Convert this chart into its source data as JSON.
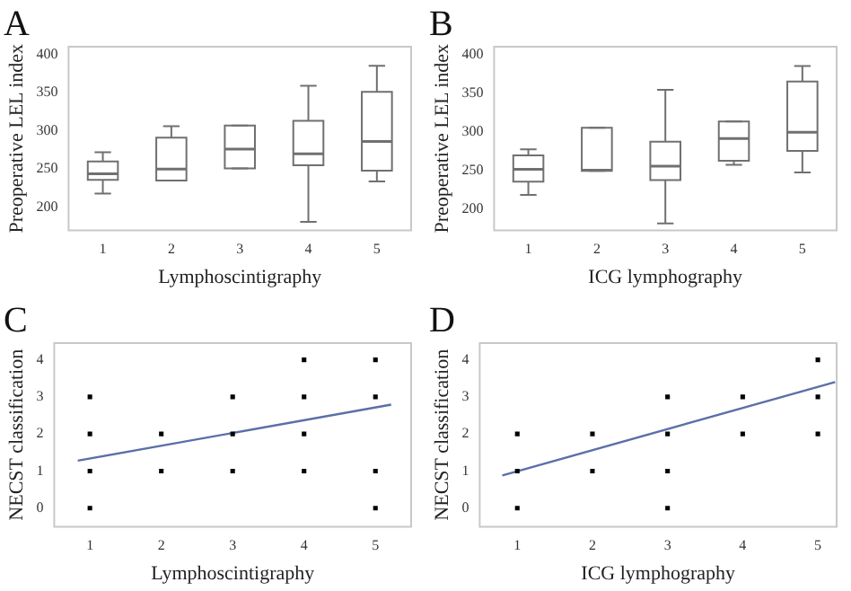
{
  "chart_data": [
    {
      "type": "box",
      "title": "A",
      "xlabel": "Lymphoscintigraphy",
      "ylabel": "Preoperative LEL index",
      "categories": [
        "1",
        "2",
        "3",
        "4",
        "5"
      ],
      "color": "#707070",
      "ylim": [
        170,
        410
      ],
      "yticks": [
        200,
        250,
        300,
        350,
        400
      ],
      "grid": false,
      "boxes": [
        {
          "low": 218,
          "q1": 236,
          "median": 244,
          "q3": 260,
          "high": 272
        },
        {
          "low": 235,
          "q1": 235,
          "median": 250,
          "q3": 291,
          "high": 306
        },
        {
          "low": 251,
          "q1": 251,
          "median": 276,
          "q3": 307,
          "high": 307
        },
        {
          "low": 181,
          "q1": 255,
          "median": 270,
          "q3": 313,
          "high": 359
        },
        {
          "low": 234,
          "q1": 248,
          "median": 286,
          "q3": 351,
          "high": 385
        }
      ]
    },
    {
      "type": "box",
      "title": "B",
      "xlabel": "ICG lymphography",
      "ylabel": "Preoperative LEL index",
      "categories": [
        "1",
        "2",
        "3",
        "4",
        "5"
      ],
      "color": "#707070",
      "ylim": [
        172,
        410
      ],
      "yticks": [
        200,
        250,
        300,
        350,
        400
      ],
      "grid": false,
      "boxes": [
        {
          "low": 218,
          "q1": 235,
          "median": 251,
          "q3": 269,
          "high": 277
        },
        {
          "low": 249,
          "q1": 249,
          "median": 250,
          "q3": 305,
          "high": 305
        },
        {
          "low": 181,
          "q1": 237,
          "median": 255,
          "q3": 287,
          "high": 354
        },
        {
          "low": 257,
          "q1": 262,
          "median": 291,
          "q3": 313,
          "high": 313
        },
        {
          "low": 247,
          "q1": 275,
          "median": 299,
          "q3": 365,
          "high": 385
        }
      ]
    },
    {
      "type": "scatter",
      "title": "C",
      "xlabel": "Lymphoscintigraphy",
      "ylabel": "NECST classification",
      "xlim": [
        0.5,
        5.5
      ],
      "xticks": [
        1,
        2,
        3,
        4,
        5
      ],
      "ylim": [
        -0.5,
        4.45
      ],
      "yticks": [
        0,
        1,
        2,
        3,
        4
      ],
      "grid": false,
      "series": [
        {
          "marker": "square",
          "color": "#000000",
          "x": [
            1,
            1,
            1,
            1,
            2,
            2,
            3,
            3,
            3,
            4,
            4,
            4,
            4,
            5,
            5,
            5,
            5
          ],
          "values": [
            3,
            2,
            1,
            0,
            2,
            1,
            3,
            2,
            1,
            4,
            3,
            2,
            1,
            4,
            3,
            1,
            0
          ]
        },
        {
          "type": "line",
          "color": "#5b6fa8",
          "x": [
            0.83,
            5.22
          ],
          "values": [
            1.28,
            2.79
          ]
        }
      ]
    },
    {
      "type": "scatter",
      "title": "D",
      "xlabel": "ICG lymphography",
      "ylabel": "NECST classification",
      "xlim": [
        0.5,
        5.25
      ],
      "xticks": [
        1,
        2,
        3,
        4,
        5
      ],
      "ylim": [
        -0.5,
        4.45
      ],
      "yticks": [
        0,
        1,
        2,
        3,
        4
      ],
      "grid": false,
      "series": [
        {
          "marker": "square",
          "color": "#000000",
          "x": [
            1,
            1,
            1,
            2,
            2,
            3,
            3,
            3,
            3,
            4,
            4,
            5,
            5,
            5
          ],
          "values": [
            2,
            1,
            0,
            2,
            1,
            3,
            2,
            1,
            0,
            3,
            2,
            4,
            3,
            2
          ]
        },
        {
          "type": "line",
          "color": "#5b6fa8",
          "x": [
            0.8,
            5.23
          ],
          "values": [
            0.88,
            3.4
          ]
        }
      ]
    }
  ]
}
